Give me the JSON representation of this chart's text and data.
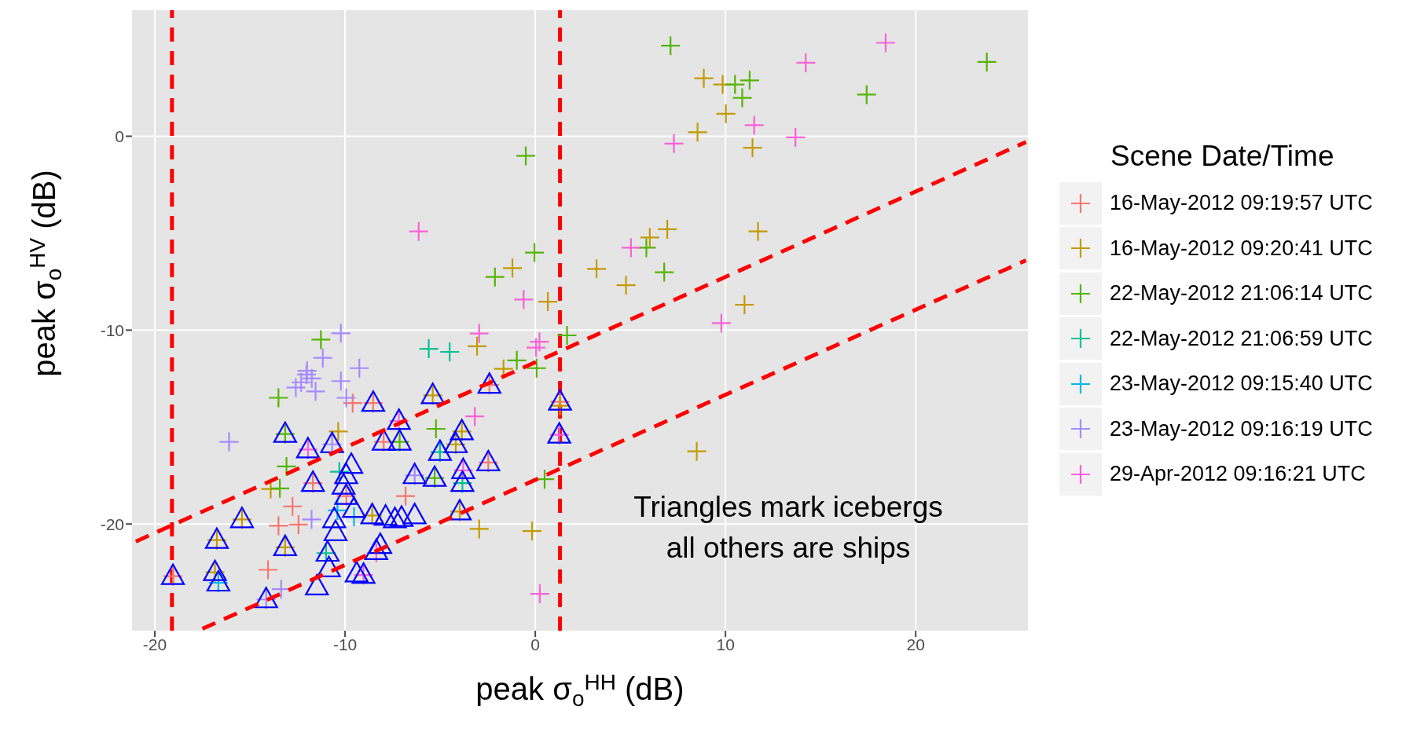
{
  "chart_data": {
    "type": "scatter",
    "xlabel": "peak σ$_{o}$$^{HH}$ (dB)",
    "ylabel": "peak σ$_{o}$$^{HV}$ (dB)",
    "legend_title": "Scene Date/Time",
    "legend": "right",
    "grid": true,
    "xlim": [
      -21.2,
      25.9
    ],
    "ylim": [
      -25.5,
      6.5
    ],
    "xticks": [
      -20,
      -10,
      0,
      10,
      20
    ],
    "yticks": [
      -20,
      -10,
      0
    ],
    "annotations": [
      "Triangles mark icebergs\nall others are ships"
    ],
    "ref_lines": [
      {
        "axis": "x",
        "value": -19.1,
        "color": "#ff0000",
        "line_style": "dashed"
      },
      {
        "axis": "x",
        "value": 1.3,
        "color": "#ff0000",
        "line_style": "dashed"
      }
    ],
    "series": [
      {
        "name": "16-May-2012 09:19:57 UTC",
        "color": "#f8766d",
        "marker": "cross",
        "x": [
          -9.6,
          -12.76,
          -13.5,
          -12.45,
          -19.05,
          -14.05,
          -11.69,
          -2.41,
          -8.52,
          -7.97,
          -2.47,
          -6.82,
          1.3,
          -9.94
        ],
        "values": [
          -13.76,
          -19.09,
          -20.09,
          -20.03,
          -22.69,
          -22.36,
          -17.89,
          -12.83,
          -13.76,
          -15.76,
          -16.83,
          -18.56,
          -13.7,
          -18.56
        ]
      },
      {
        "name": "16-May-2012 09:20:41 UTC",
        "color": "#c49a00",
        "marker": "cross",
        "x": [
          8.86,
          9.85,
          10.02,
          8.53,
          11.42,
          11.71,
          6.94,
          6.02,
          3.22,
          4.77,
          11.0,
          -1.2,
          0.66,
          -3.06,
          -1.67,
          8.49,
          -0.17,
          -2.95,
          -5.39,
          -3.86,
          -4.18,
          -3.97,
          -8.57,
          -10.36,
          -13.91,
          -15.42,
          -16.74,
          -16.84,
          1.3,
          -13.15
        ],
        "values": [
          2.99,
          2.67,
          1.16,
          0.21,
          -0.59,
          -4.91,
          -4.8,
          -5.22,
          -6.84,
          -7.68,
          -8.69,
          -6.8,
          -8.53,
          -10.83,
          -12.0,
          -16.25,
          -20.36,
          -20.25,
          -13.36,
          -15.23,
          -15.89,
          -19.36,
          -19.56,
          -15.23,
          -18.19,
          -19.76,
          -20.83,
          -22.49,
          -13.9,
          -21.2
        ]
      },
      {
        "name": "22-May-2012 21:06:14 UTC",
        "color": "#53b400",
        "marker": "cross",
        "x": [
          7.11,
          11.27,
          10.5,
          10.88,
          17.42,
          23.74,
          -0.5,
          -0.04,
          -2.12,
          5.84,
          6.78,
          1.67,
          -0.97,
          0.07,
          -5.22,
          -5.29,
          0.49,
          -11.27,
          -13.5,
          -13.15,
          -13.08,
          -13.43,
          -7.13
        ],
        "values": [
          4.67,
          2.88,
          2.67,
          1.98,
          2.15,
          3.83,
          -1.01,
          -6.0,
          -7.26,
          -5.75,
          -7.01,
          -10.27,
          -11.56,
          -11.96,
          -15.09,
          -17.63,
          -17.69,
          -10.49,
          -13.49,
          -15.36,
          -17.03,
          -18.16,
          -15.76
        ]
      },
      {
        "name": "22-May-2012 21:06:59 UTC",
        "color": "#00c094",
        "marker": "cross",
        "x": [
          -5.6,
          -4.5,
          -5.01,
          -3.83,
          -11.0,
          -10.3
        ],
        "values": [
          -10.96,
          -11.12,
          -16.29,
          -17.89,
          -21.5,
          -17.3
        ]
      },
      {
        "name": "23-May-2012 09:15:40 UTC",
        "color": "#00b6eb",
        "marker": "cross",
        "x": [
          -16.66,
          -9.53,
          -10.4
        ],
        "values": [
          -23.03,
          -19.63,
          -19.3
        ]
      },
      {
        "name": "23-May-2012 09:16:19 UTC",
        "color": "#a58aff",
        "marker": "cross",
        "x": [
          -10.22,
          -11.17,
          -12.03,
          -11.75,
          -12.31,
          -12.59,
          -11.55,
          -10.22,
          -9.94,
          -9.25,
          -16.1,
          -10.68,
          -11.76,
          -14.15,
          -13.36,
          -6.34,
          -12.0
        ],
        "values": [
          -10.16,
          -11.43,
          -12.29,
          -12.49,
          -12.69,
          -12.96,
          -13.16,
          -12.63,
          -13.49,
          -11.96,
          -15.76,
          -15.89,
          -19.76,
          -23.89,
          -23.36,
          -17.49,
          -12.1
        ]
      },
      {
        "name": "29-Apr-2012 09:16:21 UTC",
        "color": "#fb61d7",
        "marker": "cross",
        "x": [
          18.42,
          14.22,
          11.51,
          13.68,
          7.29,
          -6.13,
          5.03,
          -0.61,
          9.78,
          -2.95,
          0.22,
          0.04,
          1.26,
          -3.18,
          -7.17,
          -3.79,
          -9.03,
          -8.36,
          0.24,
          -11.95
        ],
        "values": [
          4.82,
          3.79,
          0.57,
          -0.06,
          -0.38,
          -4.91,
          -5.75,
          -8.42,
          -9.64,
          -10.17,
          -10.6,
          -10.9,
          -15.4,
          -14.45,
          -14.69,
          -17.23,
          -22.63,
          -21.49,
          -23.6,
          -16.16
        ]
      },
      {
        "color": "#0000ff",
        "marker": "triangle",
        "x": [
          -19.05,
          -16.84,
          -16.66,
          -16.74,
          -15.42,
          -14.15,
          -13.15,
          -11.95,
          -10.68,
          -11.69,
          -9.94,
          -9.67,
          -10.08,
          -9.94,
          -9.53,
          -10.57,
          -10.5,
          -10.92,
          -10.85,
          -11.48,
          -9.39,
          -8.52,
          -7.17,
          -7.97,
          -7.13,
          -5.39,
          -2.41,
          -3.86,
          -4.18,
          -5.01,
          -2.47,
          -6.34,
          -5.29,
          -3.79,
          -3.83,
          -3.97,
          -8.57,
          -7.87,
          -7.38,
          -7.03,
          -6.34,
          -8.15,
          -9.03,
          1.3,
          1.26,
          -8.36,
          -13.15
        ],
        "values": [
          -22.69,
          -22.49,
          -23.03,
          -20.83,
          -19.76,
          -23.89,
          -15.36,
          -16.16,
          -15.89,
          -17.89,
          -17.49,
          -16.96,
          -18.03,
          -18.56,
          -19.23,
          -19.76,
          -20.43,
          -21.49,
          -22.29,
          -23.23,
          -22.56,
          -13.76,
          -14.69,
          -15.76,
          -15.76,
          -13.36,
          -12.83,
          -15.23,
          -15.89,
          -16.29,
          -16.83,
          -17.49,
          -17.63,
          -17.23,
          -17.89,
          -19.36,
          -19.56,
          -19.63,
          -19.76,
          -19.69,
          -19.56,
          -21.09,
          -22.63,
          -13.7,
          -15.4,
          -21.4,
          -21.2
        ]
      },
      {
        "type": "line",
        "color": "#ff0000",
        "line_style": "dashed",
        "x": [
          -21.0,
          25.8
        ],
        "values": [
          -20.9,
          -0.3
        ]
      },
      {
        "type": "line",
        "color": "#ff0000",
        "line_style": "dashed",
        "x": [
          -17.5,
          25.8
        ],
        "values": [
          -25.4,
          -6.4
        ]
      }
    ]
  }
}
